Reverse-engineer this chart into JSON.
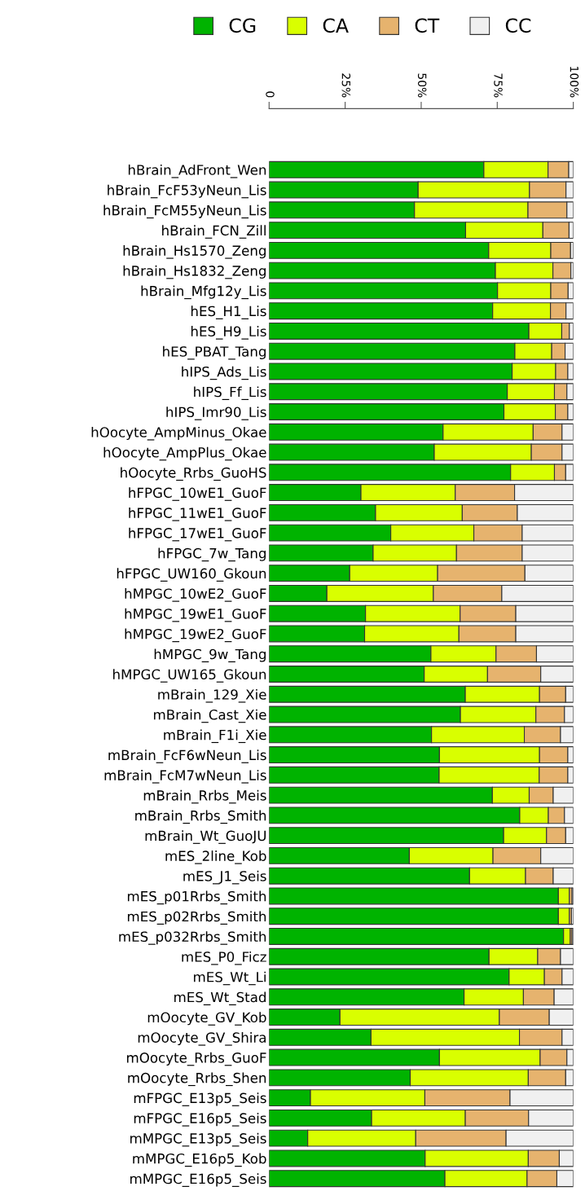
{
  "chart_data": {
    "type": "bar",
    "orientation": "horizontal",
    "stacked": true,
    "legend": "top",
    "grid": false,
    "xlim": [
      0,
      100
    ],
    "xticks": [
      0,
      {
        "value": 25,
        "label": "25%"
      },
      {
        "value": 50,
        "label": "50%"
      },
      {
        "value": 75,
        "label": "75%"
      },
      {
        "value": 100,
        "label": "100%"
      }
    ],
    "categories": [
      "hBrain_AdFront_Wen",
      "hBrain_FcF53yNeun_Lis",
      "hBrain_FcM55yNeun_Lis",
      "hBrain_FCN_Zill",
      "hBrain_Hs1570_Zeng",
      "hBrain_Hs1832_Zeng",
      "hBrain_Mfg12y_Lis",
      "hES_H1_Lis",
      "hES_H9_Lis",
      "hES_PBAT_Tang",
      "hIPS_Ads_Lis",
      "hIPS_Ff_Lis",
      "hIPS_Imr90_Lis",
      "hOocyte_AmpMinus_Okae",
      "hOocyte_AmpPlus_Okae",
      "hOocyte_Rrbs_GuoHS",
      "hFPGC_10wE1_GuoF",
      "hFPGC_11wE1_GuoF",
      "hFPGC_17wE1_GuoF",
      "hFPGC_7w_Tang",
      "hFPGC_UW160_Gkoun",
      "hMPGC_10wE2_GuoF",
      "hMPGC_19wE1_GuoF",
      "hMPGC_19wE2_GuoF",
      "hMPGC_9w_Tang",
      "hMPGC_UW165_Gkoun",
      "mBrain_129_Xie",
      "mBrain_Cast_Xie",
      "mBrain_F1i_Xie",
      "mBrain_FcF6wNeun_Lis",
      "mBrain_FcM7wNeun_Lis",
      "mBrain_Rrbs_Meis",
      "mBrain_Rrbs_Smith",
      "mBrain_Wt_GuoJU",
      "mES_2line_Kob",
      "mES_J1_Seis",
      "mES_p01Rrbs_Smith",
      "mES_p02Rrbs_Smith",
      "mES_p032Rrbs_Smith",
      "mES_P0_Ficz",
      "mES_Wt_Li",
      "mES_Wt_Stad",
      "mOocyte_GV_Kob",
      "mOocyte_GV_Shira",
      "mOocyte_Rrbs_GuoF",
      "mOocyte_Rrbs_Shen",
      "mFPGC_E13p5_Seis",
      "mFPGC_E16p5_Seis",
      "mMPGC_E13p5_Seis",
      "mMPGC_E16p5_Kob",
      "mMPGC_E16p5_Seis"
    ],
    "series": [
      {
        "name": "CG",
        "color": "#00b300",
        "values": [
          70.6,
          49.0,
          47.8,
          64.6,
          72.2,
          74.4,
          75.1,
          73.5,
          85.4,
          80.8,
          79.9,
          78.3,
          77.2,
          57.2,
          54.3,
          79.4,
          30.2,
          35.0,
          40.0,
          34.2,
          26.5,
          19.0,
          31.7,
          31.4,
          53.2,
          51.0,
          64.5,
          62.9,
          53.4,
          56.0,
          55.9,
          73.4,
          82.4,
          77.1,
          46.1,
          65.9,
          95.1,
          95.1,
          96.8,
          72.3,
          78.9,
          64.1,
          23.3,
          33.5,
          56.0,
          46.4,
          13.6,
          33.7,
          12.7,
          51.3,
          57.8
        ]
      },
      {
        "name": "CA",
        "color": "#d9ff00",
        "values": [
          21.1,
          36.6,
          37.3,
          25.4,
          20.4,
          18.9,
          17.5,
          19.0,
          10.8,
          12.1,
          14.3,
          15.5,
          16.9,
          29.6,
          31.9,
          14.4,
          31.0,
          28.5,
          27.3,
          27.4,
          28.9,
          35.0,
          31.1,
          31.0,
          21.4,
          20.8,
          24.4,
          24.8,
          30.5,
          32.9,
          32.9,
          12.1,
          9.4,
          14.1,
          27.5,
          18.4,
          3.6,
          3.6,
          2.2,
          16.0,
          11.6,
          19.5,
          52.4,
          48.8,
          33.1,
          38.8,
          37.6,
          30.8,
          35.5,
          33.9,
          27.0
        ]
      },
      {
        "name": "CT",
        "color": "#e6b36e",
        "values": [
          6.8,
          12.0,
          12.8,
          8.6,
          6.5,
          5.9,
          5.7,
          5.1,
          2.5,
          4.4,
          4.0,
          4.1,
          4.1,
          9.5,
          10.1,
          3.7,
          19.5,
          18.1,
          15.9,
          21.6,
          28.7,
          22.5,
          18.3,
          18.7,
          13.3,
          17.5,
          8.6,
          9.4,
          11.9,
          9.3,
          9.4,
          7.9,
          5.3,
          6.3,
          15.7,
          9.1,
          0.9,
          0.7,
          0.6,
          7.5,
          5.8,
          10.1,
          16.4,
          14.0,
          8.8,
          12.3,
          28.0,
          20.8,
          29.7,
          10.2,
          9.8
        ]
      },
      {
        "name": "CC",
        "color": "#f0f0f0",
        "values": [
          1.5,
          2.4,
          2.1,
          1.4,
          0.9,
          0.8,
          1.7,
          2.4,
          1.3,
          2.7,
          1.8,
          2.1,
          1.8,
          3.7,
          3.7,
          2.5,
          19.3,
          18.4,
          16.8,
          16.8,
          15.9,
          23.5,
          18.9,
          18.9,
          12.1,
          10.7,
          2.5,
          2.9,
          4.2,
          1.8,
          1.8,
          6.6,
          2.9,
          2.5,
          10.7,
          6.6,
          0.4,
          0.6,
          0.4,
          4.2,
          3.7,
          6.3,
          7.9,
          3.7,
          2.1,
          2.5,
          20.8,
          14.7,
          22.1,
          4.6,
          5.4
        ]
      }
    ]
  }
}
